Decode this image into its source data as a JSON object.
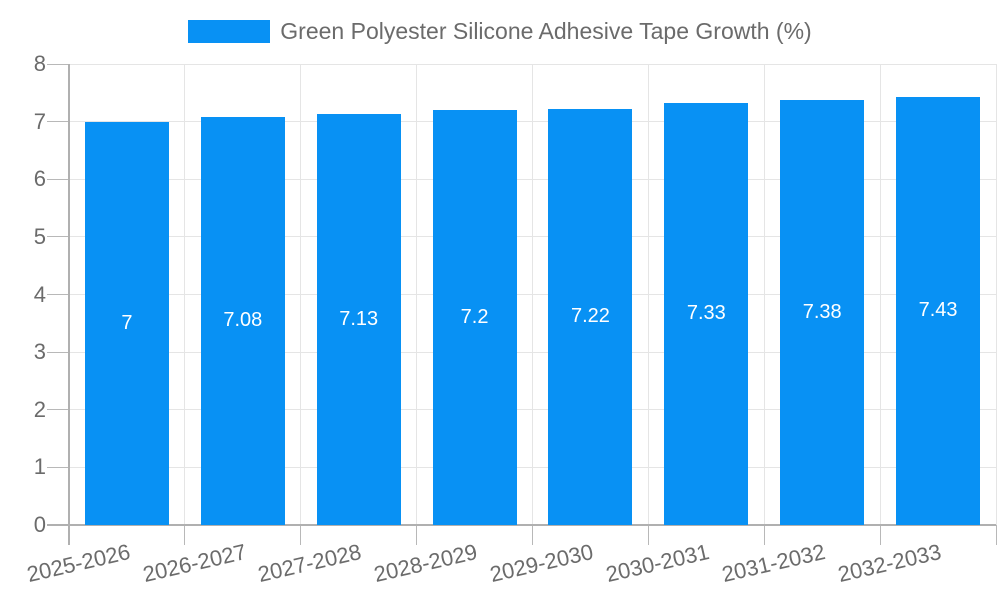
{
  "chart_data": {
    "type": "bar",
    "series_name": "Green Polyester Silicone Adhesive Tape Growth (%)",
    "legend_position": "top",
    "categories": [
      "2025-2026",
      "2026-2027",
      "2027-2028",
      "2028-2029",
      "2029-2030",
      "2030-2031",
      "2031-2032",
      "2032-2033"
    ],
    "values": [
      7,
      7.08,
      7.13,
      7.2,
      7.22,
      7.33,
      7.38,
      7.43
    ],
    "value_labels": [
      "7",
      "7.08",
      "7.13",
      "7.2",
      "7.22",
      "7.33",
      "7.38",
      "7.43"
    ],
    "ylim": [
      0,
      8
    ],
    "ytick_labels": [
      "0",
      "1",
      "2",
      "3",
      "4",
      "5",
      "6",
      "7",
      "8"
    ],
    "grid": true,
    "colors": {
      "bar": "#0891f4",
      "grid": "#e5e5e5",
      "axis": "#b0b0b0",
      "tick": "#b8b8b8",
      "text": "#6b6b6b",
      "bar_label": "#ffffff"
    }
  }
}
